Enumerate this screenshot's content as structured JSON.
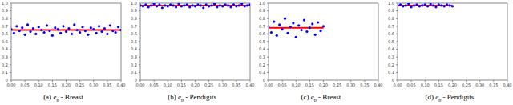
{
  "chart_data": [
    {
      "type": "scatter",
      "caption": [
        "(a) ",
        "e",
        "b",
        " - Breast"
      ],
      "xlim": [
        0,
        0.4
      ],
      "xticks": [
        {
          "value": 0,
          "label": "0.00"
        },
        {
          "value": 0.05,
          "label": "0.05"
        },
        {
          "value": 0.1,
          "label": "0.10"
        },
        {
          "value": 0.15,
          "label": "0.15"
        },
        {
          "value": 0.2,
          "label": "0.20"
        },
        {
          "value": 0.25,
          "label": "0.25"
        },
        {
          "value": 0.3,
          "label": "0.30"
        },
        {
          "value": 0.35,
          "label": "0.35"
        },
        {
          "value": 0.4,
          "label": "0.40"
        }
      ],
      "ylim": [
        0,
        1
      ],
      "yticks": [
        0,
        0.1,
        0.2,
        0.3,
        0.4,
        0.5,
        0.6,
        0.7,
        0.8,
        0.9,
        {
          "value": 1,
          "label": "1.0"
        }
      ],
      "series": [
        {
          "type": "scatter",
          "color": "#0000ff",
          "marker": "circle",
          "x": [
            0,
            0.01,
            0.02,
            0.03,
            0.04,
            0.05,
            0.06,
            0.07,
            0.08,
            0.09,
            0.1,
            0.11,
            0.12,
            0.13,
            0.14,
            0.15,
            0.16,
            0.17,
            0.18,
            0.19,
            0.2,
            0.21,
            0.22,
            0.23,
            0.24,
            0.25,
            0.26,
            0.27,
            0.28,
            0.29,
            0.3,
            0.31,
            0.32,
            0.33,
            0.34,
            0.35,
            0.36,
            0.37,
            0.38,
            0.39,
            0.4
          ],
          "values": [
            0.66,
            0.61,
            0.7,
            0.64,
            0.68,
            0.59,
            0.72,
            0.63,
            0.67,
            0.6,
            0.69,
            0.65,
            0.62,
            0.71,
            0.64,
            0.58,
            0.68,
            0.66,
            0.61,
            0.7,
            0.63,
            0.67,
            0.6,
            0.72,
            0.65,
            0.62,
            0.69,
            0.64,
            0.59,
            0.68,
            0.66,
            0.61,
            0.7,
            0.63,
            0.67,
            0.6,
            0.71,
            0.64,
            0.62,
            0.69,
            0.65
          ]
        },
        {
          "type": "line",
          "color": "#ff0000",
          "x": [
            0,
            0.4
          ],
          "values": [
            0.65,
            0.65
          ]
        }
      ]
    },
    {
      "type": "scatter",
      "caption": [
        "(b) ",
        "e",
        "b",
        " - Pendigits"
      ],
      "xlim": [
        0,
        0.4
      ],
      "xticks": [
        {
          "value": 0,
          "label": "0.00"
        },
        {
          "value": 0.05,
          "label": "0.05"
        },
        {
          "value": 0.1,
          "label": "0.10"
        },
        {
          "value": 0.15,
          "label": "0.15"
        },
        {
          "value": 0.2,
          "label": "0.20"
        },
        {
          "value": 0.25,
          "label": "0.25"
        },
        {
          "value": 0.3,
          "label": "0.30"
        },
        {
          "value": 0.35,
          "label": "0.35"
        },
        {
          "value": 0.4,
          "label": "0.40"
        }
      ],
      "ylim": [
        0,
        1
      ],
      "yticks": [
        0,
        0.1,
        0.2,
        0.3,
        0.4,
        0.5,
        0.6,
        0.7,
        0.8,
        0.9,
        {
          "value": 1,
          "label": "1.0"
        }
      ],
      "series": [
        {
          "type": "scatter",
          "color": "#0000ff",
          "marker": "circle",
          "x": [
            0,
            0.01,
            0.02,
            0.03,
            0.04,
            0.05,
            0.06,
            0.07,
            0.08,
            0.09,
            0.1,
            0.11,
            0.12,
            0.13,
            0.14,
            0.15,
            0.16,
            0.17,
            0.18,
            0.19,
            0.2,
            0.21,
            0.22,
            0.23,
            0.24,
            0.25,
            0.26,
            0.27,
            0.28,
            0.29,
            0.3,
            0.31,
            0.32,
            0.33,
            0.34,
            0.35,
            0.36,
            0.37,
            0.38,
            0.39,
            0.4
          ],
          "values": [
            0.97,
            0.96,
            0.98,
            0.95,
            0.97,
            0.99,
            0.96,
            0.98,
            0.94,
            0.97,
            0.96,
            0.98,
            0.97,
            0.95,
            0.99,
            0.96,
            0.97,
            0.98,
            0.95,
            0.97,
            0.96,
            0.98,
            0.97,
            0.94,
            0.98,
            0.96,
            0.97,
            0.99,
            0.95,
            0.97,
            0.96,
            0.98,
            0.97,
            0.95,
            0.98,
            0.96,
            0.97,
            0.99,
            0.96,
            0.97,
            0.98
          ]
        },
        {
          "type": "line",
          "color": "#ff0000",
          "x": [
            0,
            0.4
          ],
          "values": [
            0.97,
            0.97
          ]
        }
      ]
    },
    {
      "type": "scatter",
      "caption": [
        "(c) ",
        "e",
        "b",
        " - Breast"
      ],
      "xlim": [
        0,
        0.4
      ],
      "xticks": [
        {
          "value": 0,
          "label": "0.00"
        },
        {
          "value": 0.05,
          "label": "0.05"
        },
        {
          "value": 0.1,
          "label": "0.10"
        },
        {
          "value": 0.15,
          "label": "0.15"
        },
        {
          "value": 0.2,
          "label": "0.20"
        },
        {
          "value": 0.25,
          "label": "0.25"
        },
        {
          "value": 0.3,
          "label": "0.30"
        },
        {
          "value": 0.35,
          "label": "0.35"
        },
        {
          "value": 0.4,
          "label": "0.40"
        }
      ],
      "ylim": [
        0,
        1
      ],
      "yticks": [
        0,
        0.1,
        0.2,
        0.3,
        0.4,
        0.5,
        0.6,
        0.7,
        0.8,
        0.9,
        {
          "value": 1,
          "label": "1.0"
        }
      ],
      "series": [
        {
          "type": "scatter",
          "color": "#0000ff",
          "marker": "circle",
          "x": [
            0,
            0.01,
            0.02,
            0.03,
            0.04,
            0.05,
            0.06,
            0.07,
            0.08,
            0.09,
            0.1,
            0.11,
            0.12,
            0.13,
            0.14,
            0.15,
            0.16,
            0.17,
            0.18,
            0.19,
            0.2
          ],
          "values": [
            0.7,
            0.62,
            0.76,
            0.58,
            0.72,
            0.66,
            0.8,
            0.61,
            0.69,
            0.74,
            0.56,
            0.71,
            0.65,
            0.78,
            0.63,
            0.68,
            0.73,
            0.59,
            0.75,
            0.64,
            0.7
          ]
        },
        {
          "type": "line",
          "color": "#ff0000",
          "x": [
            0,
            0.2
          ],
          "values": [
            0.68,
            0.68
          ]
        }
      ]
    },
    {
      "type": "scatter",
      "caption": [
        "(d) ",
        "e",
        "b",
        " - Pendigits"
      ],
      "xlim": [
        0,
        0.4
      ],
      "xticks": [
        {
          "value": 0,
          "label": "0.00"
        },
        {
          "value": 0.05,
          "label": "0.05"
        },
        {
          "value": 0.1,
          "label": "0.10"
        },
        {
          "value": 0.15,
          "label": "0.15"
        },
        {
          "value": 0.2,
          "label": "0.20"
        },
        {
          "value": 0.25,
          "label": "0.25"
        },
        {
          "value": 0.3,
          "label": "0.30"
        },
        {
          "value": 0.35,
          "label": "0.35"
        },
        {
          "value": 0.4,
          "label": "0.40"
        }
      ],
      "ylim": [
        0,
        1
      ],
      "yticks": [
        0,
        0.1,
        0.2,
        0.3,
        0.4,
        0.5,
        0.6,
        0.7,
        0.8,
        0.9,
        {
          "value": 1,
          "label": "1.0"
        }
      ],
      "series": [
        {
          "type": "scatter",
          "color": "#0000ff",
          "marker": "circle",
          "x": [
            0,
            0.01,
            0.02,
            0.03,
            0.04,
            0.05,
            0.06,
            0.07,
            0.08,
            0.09,
            0.1,
            0.11,
            0.12,
            0.13,
            0.14,
            0.15,
            0.16,
            0.17,
            0.18,
            0.19,
            0.2
          ],
          "values": [
            0.97,
            0.98,
            0.96,
            0.97,
            0.99,
            0.95,
            0.97,
            0.98,
            0.96,
            0.97,
            0.98,
            0.96,
            0.99,
            0.97,
            0.95,
            0.98,
            0.97,
            0.96,
            0.98,
            0.97,
            0.96
          ]
        },
        {
          "type": "line",
          "color": "#ff0000",
          "x": [
            0,
            0.2
          ],
          "values": [
            0.97,
            0.97
          ]
        }
      ]
    }
  ]
}
